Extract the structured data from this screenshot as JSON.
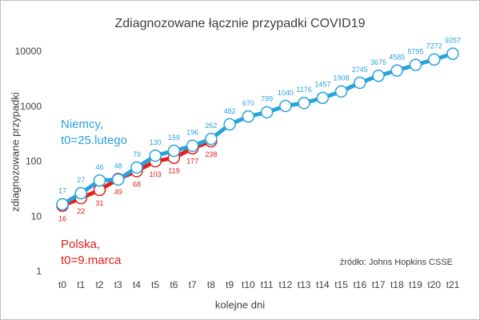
{
  "chart_data": {
    "type": "line",
    "title": "Zdiagnozowane łącznie przypadki COVID19",
    "xlabel": "kolejne dni",
    "ylabel": "zdiagnozowane przypadki",
    "categories": [
      "t0",
      "t1",
      "t2",
      "t3",
      "t4",
      "t5",
      "t6",
      "t7",
      "t8",
      "t9",
      "t10",
      "t11",
      "t12",
      "t13",
      "t14",
      "t15",
      "t16",
      "t17",
      "t18",
      "t19",
      "t20",
      "t21"
    ],
    "series": [
      {
        "name": "Niemcy,",
        "label": "t0=25.lutego",
        "color": "#29a3dc",
        "values": [
          17,
          27,
          46,
          48,
          79,
          130,
          159,
          196,
          262,
          482,
          670,
          799,
          1040,
          1176,
          1457,
          1908,
          2745,
          3675,
          4585,
          5795,
          7272,
          9257
        ]
      },
      {
        "name": "Polska,",
        "label": "t0=9.marca",
        "color": "#e3201b",
        "values": [
          16,
          22,
          31,
          49,
          68,
          103,
          119,
          177,
          238,
          null,
          null,
          null,
          null,
          null,
          null,
          null,
          null,
          null,
          null,
          null,
          null,
          null
        ]
      }
    ],
    "source": "źródło: Johns Hopkins CSSE",
    "log_y": true,
    "ylim": [
      1,
      30000
    ],
    "yticks": [
      1,
      10,
      100,
      1000,
      10000
    ],
    "grid": false
  }
}
